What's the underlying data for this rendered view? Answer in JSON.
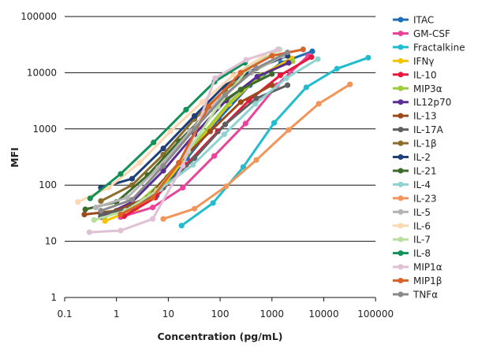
{
  "chart_data": {
    "type": "line",
    "title": "",
    "xlabel": "Concentration (pg/mL)",
    "ylabel": "MFI",
    "xscale": "log",
    "yscale": "log",
    "xlim": [
      0.1,
      100000
    ],
    "ylim": [
      1,
      100000
    ],
    "xticks": [
      "0.1",
      "1",
      "10",
      "100",
      "1000",
      "10000",
      "100000"
    ],
    "yticks": [
      "1",
      "10",
      "100",
      "1000",
      "10000",
      "100000"
    ],
    "grid": "horizontal",
    "legend": "right",
    "series": [
      {
        "name": "ITAC",
        "color": "#1f6db5",
        "x": [
          1.5,
          6,
          23,
          94,
          375,
          1500,
          6000
        ],
        "y": [
          30,
          65,
          300,
          1500,
          6000,
          15000,
          24000
        ]
      },
      {
        "name": "GM-CSF",
        "color": "#e8449a",
        "x": [
          1.2,
          5,
          19,
          77,
          310,
          1250,
          5000
        ],
        "y": [
          27,
          40,
          90,
          330,
          1250,
          6000,
          20000
        ]
      },
      {
        "name": "Fractalkine",
        "color": "#22bccf",
        "x": [
          18,
          73,
          280,
          1100,
          4600,
          18000,
          72000
        ],
        "y": [
          19,
          48,
          210,
          1280,
          5500,
          11800,
          18500
        ]
      },
      {
        "name": "IFNγ",
        "color": "#f5c400",
        "x": [
          0.6,
          2.4,
          9.6,
          38,
          150,
          610,
          2400
        ],
        "y": [
          23,
          38,
          120,
          600,
          2800,
          9000,
          18000
        ]
      },
      {
        "name": "IL-10",
        "color": "#e8183c",
        "x": [
          1.4,
          5.6,
          22,
          90,
          360,
          1450,
          5800
        ],
        "y": [
          28,
          60,
          230,
          900,
          3200,
          9000,
          19000
        ]
      },
      {
        "name": "MIP3α",
        "color": "#9ccc3c",
        "x": [
          0.6,
          2.4,
          9.6,
          38,
          150,
          610,
          2500
        ],
        "y": [
          28,
          45,
          140,
          650,
          3000,
          9000,
          16000
        ]
      },
      {
        "name": "IL12p70",
        "color": "#5a2d91",
        "x": [
          0.5,
          2,
          8,
          32,
          130,
          520,
          2100
        ],
        "y": [
          27,
          50,
          180,
          800,
          3200,
          8500,
          15000
        ]
      },
      {
        "name": "IL-13",
        "color": "#9c4a1c",
        "x": [
          0.24,
          1,
          4,
          16,
          64,
          250,
          1000
        ],
        "y": [
          30,
          35,
          60,
          250,
          900,
          3000,
          6000
        ]
      },
      {
        "name": "IL-17A",
        "color": "#5f5f5f",
        "x": [
          0.5,
          2,
          8,
          32,
          125,
          500,
          2000
        ],
        "y": [
          30,
          40,
          90,
          300,
          1200,
          3500,
          6000
        ]
      },
      {
        "name": "IL-1β",
        "color": "#8c6d2c",
        "x": [
          0.5,
          2,
          8,
          32,
          125,
          500,
          2000
        ],
        "y": [
          52,
          100,
          350,
          1500,
          5000,
          12000,
          20000
        ]
      },
      {
        "name": "IL-2",
        "color": "#1f3f7a",
        "x": [
          0.5,
          2,
          8,
          32,
          125,
          500,
          2000
        ],
        "y": [
          90,
          130,
          450,
          1700,
          6000,
          12000,
          20000
        ]
      },
      {
        "name": "IL-21",
        "color": "#3e6a2a",
        "x": [
          0.25,
          1,
          4,
          16,
          64,
          250,
          1000
        ],
        "y": [
          37,
          50,
          150,
          600,
          2200,
          5000,
          9500
        ]
      },
      {
        "name": "IL-4",
        "color": "#8fd3d0",
        "x": [
          7,
          30,
          120,
          480,
          1900,
          7700
        ],
        "y": [
          85,
          230,
          800,
          2800,
          8000,
          17500
        ]
      },
      {
        "name": "IL-23",
        "color": "#f2955a",
        "x": [
          8,
          32,
          130,
          500,
          2100,
          8000,
          32000
        ],
        "y": [
          25,
          38,
          95,
          280,
          960,
          2800,
          6200
        ]
      },
      {
        "name": "IL-5",
        "color": "#b4b4b4",
        "x": [
          0.4,
          1.6,
          6.4,
          26,
          100,
          400,
          1600
        ],
        "y": [
          40,
          60,
          200,
          900,
          3500,
          10000,
          20000
        ]
      },
      {
        "name": "IL-6",
        "color": "#fbd8b0",
        "x": [
          0.18,
          0.7,
          2.8,
          11,
          45,
          180,
          700
        ],
        "y": [
          50,
          90,
          250,
          900,
          3000,
          9000,
          20000
        ]
      },
      {
        "name": "IL-7",
        "color": "#b8dea0",
        "x": [
          0.37,
          1.5,
          6,
          24,
          90,
          350,
          1400
        ],
        "y": [
          24,
          35,
          80,
          400,
          2500,
          12000,
          26000
        ]
      },
      {
        "name": "IL-8",
        "color": "#129158",
        "x": [
          0.31,
          1.2,
          5.2,
          22,
          78,
          300
        ],
        "y": [
          58,
          158,
          575,
          2200,
          6900,
          15000
        ]
      },
      {
        "name": "MIP1α",
        "color": "#e0c0d4",
        "x": [
          0.3,
          1.2,
          5,
          19,
          80,
          320,
          1300
        ],
        "y": [
          14.5,
          15.5,
          25,
          220,
          8000,
          17000,
          26000
        ]
      },
      {
        "name": "MIP1β",
        "color": "#d8642a",
        "x": [
          1.2,
          5,
          16,
          60,
          250,
          1000,
          4000
        ],
        "y": [
          30,
          60,
          250,
          2500,
          10000,
          20000,
          26000
        ]
      },
      {
        "name": "TNFα",
        "color": "#8a8a8a",
        "x": [
          0.5,
          2,
          8,
          32,
          125,
          500,
          2000
        ],
        "y": [
          35,
          55,
          220,
          1000,
          4000,
          12000,
          23000
        ]
      }
    ]
  }
}
